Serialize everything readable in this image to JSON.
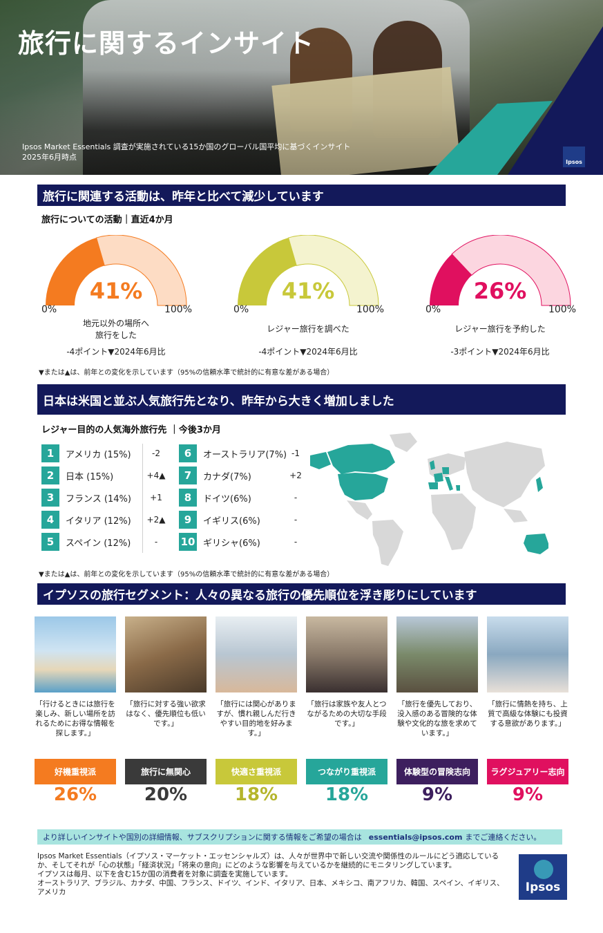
{
  "hero": {
    "title": "旅行に関するインサイト",
    "subtitle_line1": "Ipsos Market Essentials 調査が実施されている15か国のグローバル国平均に基づくインサイト",
    "subtitle_line2": "2025年6月時点",
    "logo_text": "Ipsos"
  },
  "section1": {
    "banner": "旅行に関連する活動は、昨年と比べて減少しています",
    "subhead": "旅行についての活動｜直近4か月",
    "gauges": [
      {
        "value": 41,
        "pct_label": "41%",
        "min_label": "0%",
        "max_label": "100%",
        "desc_line1": "地元以外の場所へ",
        "desc_line2": "旅行をした",
        "change": "-4ポイント▼2024年6月比",
        "color": "#f47b20",
        "light": "#fddcc4"
      },
      {
        "value": 41,
        "pct_label": "41%",
        "min_label": "0%",
        "max_label": "100%",
        "desc_line1": "レジャー旅行を調べた",
        "desc_line2": "",
        "change": "-4ポイント▼2024年6月比",
        "color": "#c8c83a",
        "light": "#f4f3cf"
      },
      {
        "value": 26,
        "pct_label": "26%",
        "min_label": "0%",
        "max_label": "100%",
        "desc_line1": "レジャー旅行を予約した",
        "desc_line2": "",
        "change": "-3ポイント▼2024年6月比",
        "color": "#e0105f",
        "light": "#fcd6e0"
      }
    ],
    "note": "▼または▲は、前年との変化を示しています（95%の信頼水準で統計的に有意な差がある場合）"
  },
  "section2": {
    "banner": "日本は米国と並ぶ人気旅行先となり、昨年から大きく増加しました",
    "subhead": "レジャー目的の人気海外旅行先 ｜今後3か月",
    "left": [
      {
        "num": "1",
        "name": "アメリカ (15%)",
        "change": "-2"
      },
      {
        "num": "2",
        "name": "日本 (15%)",
        "change": "+4▲"
      },
      {
        "num": "3",
        "name": "フランス (14%)",
        "change": "+1"
      },
      {
        "num": "4",
        "name": "イタリア (12%)",
        "change": "+2▲"
      },
      {
        "num": "5",
        "name": "スペイン (12%)",
        "change": "-"
      }
    ],
    "right": [
      {
        "num": "6",
        "name": "オーストラリア(7%)",
        "change": "-1"
      },
      {
        "num": "7",
        "name": "カナダ(7%)",
        "change": "+2"
      },
      {
        "num": "8",
        "name": "ドイツ(6%)",
        "change": "-"
      },
      {
        "num": "9",
        "name": "イギリス(6%)",
        "change": "-"
      },
      {
        "num": "10",
        "name": "ギリシャ(6%)",
        "change": "-"
      }
    ],
    "note": "▼または▲は、前年との変化を示しています（95%の信頼水準で統計的に有意な差がある場合）"
  },
  "section3": {
    "banner": "イプソスの旅行セグメント：人々の異なる旅行の優先順位を浮き彫りにしています",
    "segments": [
      {
        "quote": "「行けるときには旅行を楽しみ、新しい場所を訪れるためにお得な情報を探します。」",
        "tag": "好機重視派",
        "pct": "26%",
        "color": "#f47b20",
        "pct_color": "#f47b20"
      },
      {
        "quote": "「旅行に対する強い欲求はなく、優先順位も低いです。」",
        "tag": "旅行に無関心",
        "pct": "20%",
        "color": "#3a3a3a",
        "pct_color": "#3a3a3a"
      },
      {
        "quote": "「旅行には関心がありますが、慣れ親しんだ行きやすい目的地を好みます。」",
        "tag": "快適さ重視派",
        "pct": "18%",
        "color": "#c8c83a",
        "pct_color": "#b5b52c"
      },
      {
        "quote": "「旅行は家族や友人とつながるための大切な手段です。」",
        "tag": "つながり重視派",
        "pct": "18%",
        "color": "#26a69a",
        "pct_color": "#26a69a"
      },
      {
        "quote": "「旅行を優先しており、没入感のある冒険的な体験や文化的な旅を求めています。」",
        "tag": "体験型の冒険志向",
        "pct": "9%",
        "color": "#3d1f5e",
        "pct_color": "#3d1f5e"
      },
      {
        "quote": "「旅行に情熱を持ち、上質で高級な体験にも投資する意欲があります。」",
        "tag": "ラグジュアリー志向",
        "pct": "9%",
        "color": "#e0105f",
        "pct_color": "#e0105f"
      }
    ]
  },
  "contact": {
    "text_before": "より詳しいインサイトや国別の詳細情報、サブスクリプションに関する情報をご希望の場合は",
    "email": "essentials@ipsos.com",
    "text_after": "までご連絡ください。"
  },
  "footer": {
    "line1": "Ipsos Market Essentials（イプソス・マーケット・エッセンシャルズ）は、人々が世界中で新しい交流や関係性のルールにどう適応しているか、そしてそれが「心の状態」「経済状況」「将来の意向」にどのような影響を与えているかを継続的にモニタリングしています。",
    "line2": " イプソスは毎月、以下を含む15か国の消費者を対象に調査を実施しています。",
    "line3": "オーストラリア、ブラジル、カナダ、中国、フランス、ドイツ、インド、イタリア、日本、メキシコ、南アフリカ、韓国、スペイン、イギリス、アメリカ",
    "logo_text": "Ipsos"
  }
}
